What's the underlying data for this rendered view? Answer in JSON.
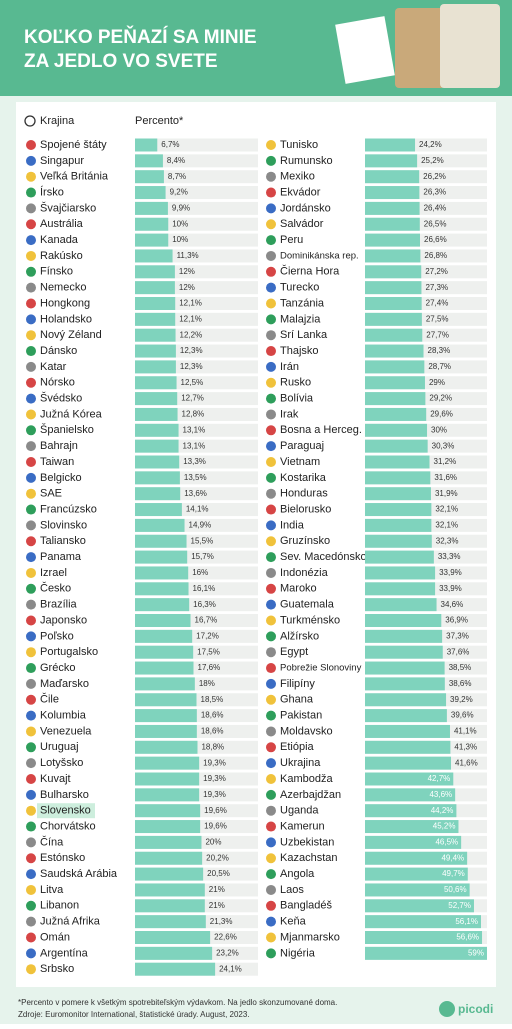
{
  "title": [
    "KOĽKO PEŇAZÍ SA MINIE",
    "ZA JEDLO VO SVETE"
  ],
  "footnote": "*Percento v pomere k všetkým spotrebiteľským výdavkom. Na jedlo skonzumované doma.",
  "source": "Zdroje: Euromonitor International, štatistické úrady. August, 2023.",
  "logo": "picodi",
  "chart_data": [
    {
      "type": "bar",
      "ylabel": "Krajina",
      "xlabel": "Percento*",
      "color": "#7fd3bd",
      "xlim": [
        0,
        37
      ],
      "highlight": 42,
      "categories": [
        "Spojené štáty",
        "Singapur",
        "Veľká Británia",
        "Írsko",
        "Švajčiarsko",
        "Austrália",
        "Kanada",
        "Rakúsko",
        "Fínsko",
        "Nemecko",
        "Hongkong",
        "Holandsko",
        "Nový Zéland",
        "Dánsko",
        "Katar",
        "Nórsko",
        "Švédsko",
        "Južná Kórea",
        "Španielsko",
        "Bahrajn",
        "Taiwan",
        "Belgicko",
        "SAE",
        "Francúzsko",
        "Slovinsko",
        "Taliansko",
        "Panama",
        "Izrael",
        "Česko",
        "Brazília",
        "Japonsko",
        "Poľsko",
        "Portugalsko",
        "Grécko",
        "Maďarsko",
        "Čile",
        "Kolumbia",
        "Venezuela",
        "Uruguaj",
        "Lotyšsko",
        "Kuvajt",
        "Bulharsko",
        "Slovensko",
        "Chorvátsko",
        "Čína",
        "Estónsko",
        "Saudská Arábia",
        "Litva",
        "Libanon",
        "Južná Afrika",
        "Omán",
        "Argentína",
        "Srbsko"
      ],
      "values": [
        6.7,
        8.4,
        8.7,
        9.2,
        9.9,
        10,
        10,
        11.3,
        12,
        12,
        12.1,
        12.1,
        12.2,
        12.3,
        12.3,
        12.5,
        12.7,
        12.8,
        13.1,
        13.1,
        13.3,
        13.5,
        13.6,
        14.1,
        14.9,
        15.5,
        15.7,
        16,
        16.1,
        16.3,
        16.7,
        17.2,
        17.5,
        17.6,
        18,
        18.5,
        18.6,
        18.6,
        18.8,
        19.3,
        19.3,
        19.3,
        19.6,
        19.6,
        20,
        20.2,
        20.5,
        21,
        21,
        21.3,
        22.6,
        23.2,
        24.1
      ],
      "value_labels": [
        "6,7%",
        "8,4%",
        "8,7%",
        "9,2%",
        "9,9%",
        "10%",
        "10%",
        "11,3%",
        "12%",
        "12%",
        "12,1%",
        "12,1%",
        "12,2%",
        "12,3%",
        "12,3%",
        "12,5%",
        "12,7%",
        "12,8%",
        "13,1%",
        "13,1%",
        "13,3%",
        "13,5%",
        "13,6%",
        "14,1%",
        "14,9%",
        "15,5%",
        "15,7%",
        "16%",
        "16,1%",
        "16,3%",
        "16,7%",
        "17,2%",
        "17,5%",
        "17,6%",
        "18%",
        "18,5%",
        "18,6%",
        "18,6%",
        "18,8%",
        "19,3%",
        "19,3%",
        "19,3%",
        "19,6%",
        "19,6%",
        "20%",
        "20,2%",
        "20,5%",
        "21%",
        "21%",
        "21,3%",
        "22,6%",
        "23,2%",
        "24,1%"
      ]
    },
    {
      "type": "bar",
      "color": "#7fd3bd",
      "xlim": [
        0,
        59
      ],
      "categories": [
        "Tunisko",
        "Rumunsko",
        "Mexiko",
        "Ekvádor",
        "Jordánsko",
        "Salvádor",
        "Peru",
        "Dominikánska rep.",
        "Čierna Hora",
        "Turecko",
        "Tanzánia",
        "Malajzia",
        "Srí Lanka",
        "Thajsko",
        "Irán",
        "Rusko",
        "Bolívia",
        "Irak",
        "Bosna a Herceg.",
        "Paraguaj",
        "Vietnam",
        "Kostarika",
        "Honduras",
        "Bielorusko",
        "India",
        "Gruzínsko",
        "Sev. Macedónsko",
        "Indonézia",
        "Maroko",
        "Guatemala",
        "Turkménsko",
        "Alžírsko",
        "Egypt",
        "Pobrežie Slonoviny",
        "Filipíny",
        "Ghana",
        "Pakistan",
        "Moldavsko",
        "Etiópia",
        "Ukrajina",
        "Kambodža",
        "Azerbajdžan",
        "Uganda",
        "Kamerun",
        "Uzbekistan",
        "Kazachstan",
        "Angola",
        "Laos",
        "Bangladéš",
        "Keňa",
        "Mjanmarsko",
        "Nigéria"
      ],
      "values": [
        24.2,
        25.2,
        26.2,
        26.3,
        26.4,
        26.5,
        26.6,
        26.8,
        27.2,
        27.3,
        27.4,
        27.5,
        27.7,
        28.3,
        28.7,
        29,
        29.2,
        29.6,
        30,
        30.3,
        31.2,
        31.6,
        31.9,
        32.1,
        32.1,
        32.3,
        33.3,
        33.9,
        33.9,
        34.6,
        36.9,
        37.3,
        37.6,
        38.5,
        38.6,
        39.2,
        39.6,
        41.1,
        41.3,
        41.6,
        42.7,
        43.6,
        44.2,
        45.2,
        46.5,
        49.4,
        49.7,
        50.6,
        52.7,
        56.1,
        56.6,
        59
      ],
      "value_labels": [
        "24,2%",
        "25,2%",
        "26,2%",
        "26,3%",
        "26,4%",
        "26,5%",
        "26,6%",
        "26,8%",
        "27,2%",
        "27,3%",
        "27,4%",
        "27,5%",
        "27,7%",
        "28,3%",
        "28,7%",
        "29%",
        "29,2%",
        "29,6%",
        "30%",
        "30,3%",
        "31,2%",
        "31,6%",
        "31,9%",
        "32,1%",
        "32,1%",
        "32,3%",
        "33,3%",
        "33,9%",
        "33,9%",
        "34,6%",
        "36,9%",
        "37,3%",
        "37,6%",
        "38,5%",
        "38,6%",
        "39,2%",
        "39,6%",
        "41,1%",
        "41,3%",
        "41,6%",
        "42,7%",
        "43,6%",
        "44,2%",
        "45,2%",
        "46,5%",
        "49,4%",
        "49,7%",
        "50,6%",
        "52,7%",
        "56,1%",
        "56,6%",
        "59%"
      ]
    }
  ]
}
